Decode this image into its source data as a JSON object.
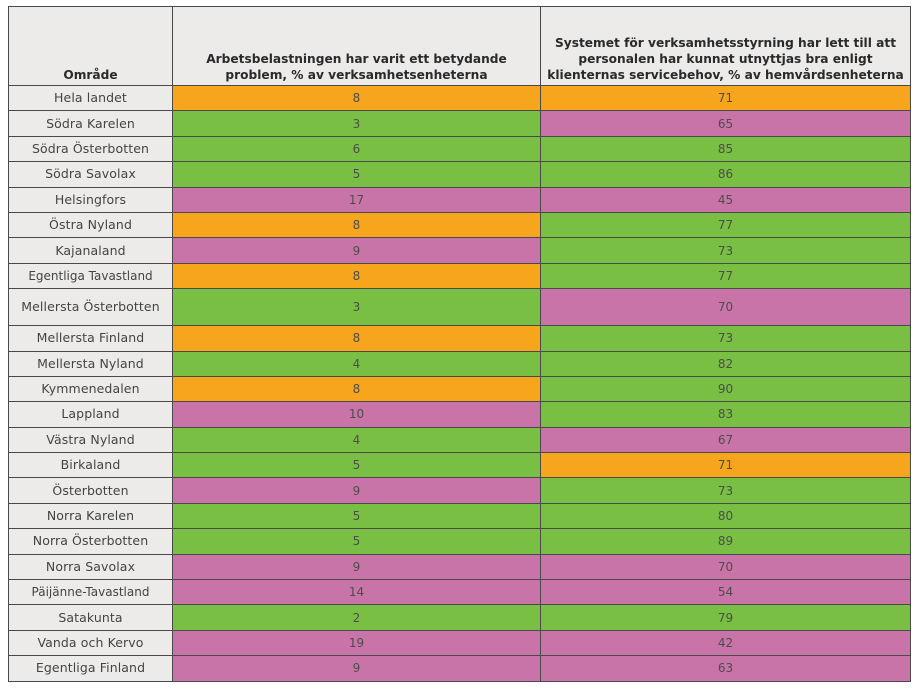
{
  "table": {
    "headers": [
      "Område",
      "Arbetsbelastningen har varit ett betydande problem, % av verksamhetsenheterna",
      "Systemet för verksamhetsstyrning har lett till att personalen har kunnat utnyttjas bra enligt klienternas servicebehov, % av hemvårdsenheterna"
    ],
    "colors": {
      "orange": "#f7a51d",
      "green": "#79bf43",
      "pink": "#c974a8",
      "header_bg": "#ecebea"
    },
    "rows": [
      {
        "region": "Hela landet",
        "workload": "8",
        "workload_color": "orange",
        "system": "71",
        "system_color": "orange"
      },
      {
        "region": "Södra Karelen",
        "workload": "3",
        "workload_color": "green",
        "system": "65",
        "system_color": "pink"
      },
      {
        "region": "Södra Österbotten",
        "workload": "6",
        "workload_color": "green",
        "system": "85",
        "system_color": "green"
      },
      {
        "region": "Södra Savolax",
        "workload": "5",
        "workload_color": "green",
        "system": "86",
        "system_color": "green"
      },
      {
        "region": "Helsingfors",
        "workload": "17",
        "workload_color": "pink",
        "system": "45",
        "system_color": "pink"
      },
      {
        "region": "Östra Nyland",
        "workload": "8",
        "workload_color": "orange",
        "system": "77",
        "system_color": "green"
      },
      {
        "region": "Kajanaland",
        "workload": "9",
        "workload_color": "pink",
        "system": "73",
        "system_color": "green"
      },
      {
        "region": "Egentliga Tavastland",
        "workload": "8",
        "workload_color": "orange",
        "system": "77",
        "system_color": "green"
      },
      {
        "region": "Mellersta Österbotten",
        "workload": "3",
        "workload_color": "green",
        "system": "70",
        "system_color": "pink"
      },
      {
        "region": "Mellersta Finland",
        "workload": "8",
        "workload_color": "orange",
        "system": "73",
        "system_color": "green"
      },
      {
        "region": "Mellersta Nyland",
        "workload": "4",
        "workload_color": "green",
        "system": "82",
        "system_color": "green"
      },
      {
        "region": "Kymmenedalen",
        "workload": "8",
        "workload_color": "orange",
        "system": "90",
        "system_color": "green"
      },
      {
        "region": "Lappland",
        "workload": "10",
        "workload_color": "pink",
        "system": "83",
        "system_color": "green"
      },
      {
        "region": "Västra Nyland",
        "workload": "4",
        "workload_color": "green",
        "system": "67",
        "system_color": "pink"
      },
      {
        "region": "Birkaland",
        "workload": "5",
        "workload_color": "green",
        "system": "71",
        "system_color": "orange"
      },
      {
        "region": "Österbotten",
        "workload": "9",
        "workload_color": "pink",
        "system": "73",
        "system_color": "green"
      },
      {
        "region": "Norra Karelen",
        "workload": "5",
        "workload_color": "green",
        "system": "80",
        "system_color": "green"
      },
      {
        "region": "Norra Österbotten",
        "workload": "5",
        "workload_color": "green",
        "system": "89",
        "system_color": "green"
      },
      {
        "region": "Norra Savolax",
        "workload": "9",
        "workload_color": "pink",
        "system": "70",
        "system_color": "pink"
      },
      {
        "region": "Päijänne-Tavastland",
        "workload": "14",
        "workload_color": "pink",
        "system": "54",
        "system_color": "pink"
      },
      {
        "region": "Satakunta",
        "workload": "2",
        "workload_color": "green",
        "system": "79",
        "system_color": "green"
      },
      {
        "region": "Vanda och Kervo",
        "workload": "19",
        "workload_color": "pink",
        "system": "42",
        "system_color": "pink"
      },
      {
        "region": "Egentliga Finland",
        "workload": "9",
        "workload_color": "pink",
        "system": "63",
        "system_color": "pink"
      }
    ]
  }
}
